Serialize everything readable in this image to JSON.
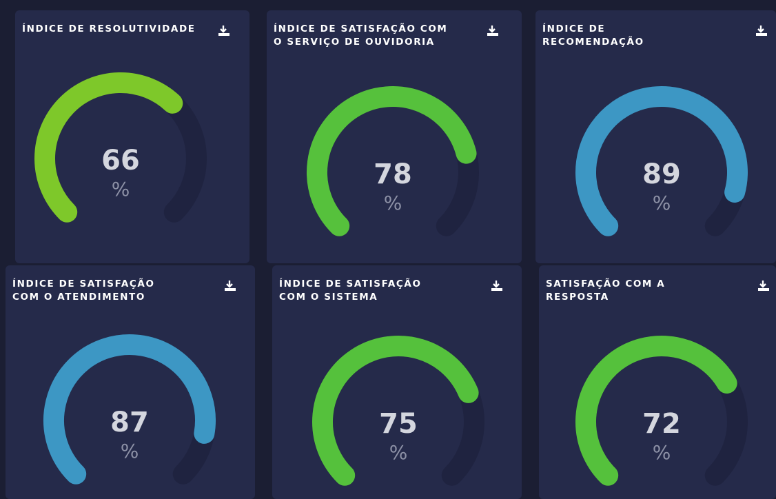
{
  "chart_data": [
    {
      "type": "gauge",
      "title": "ÍNDICE DE RESOLUTIVIDADE",
      "value": 66,
      "unit": "%",
      "ylim": [
        0,
        100
      ],
      "color": "#7ec82a"
    },
    {
      "type": "gauge",
      "title": "ÍNDICE DE SATISFAÇÃO COM O SERVIÇO DE OUVIDORIA",
      "value": 78,
      "unit": "%",
      "ylim": [
        0,
        100
      ],
      "color": "#56c13c"
    },
    {
      "type": "gauge",
      "title": "ÍNDICE DE RECOMENDAÇÃO",
      "value": 89,
      "unit": "%",
      "ylim": [
        0,
        100
      ],
      "color": "#3d97c4"
    },
    {
      "type": "gauge",
      "title": "ÍNDICE DE SATISFAÇÃO COM O ATENDIMENTO",
      "value": 87,
      "unit": "%",
      "ylim": [
        0,
        100
      ],
      "color": "#3d97c4"
    },
    {
      "type": "gauge",
      "title": "ÍNDICE DE SATISFAÇÃO COM O SISTEMA",
      "value": 75,
      "unit": "%",
      "ylim": [
        0,
        100
      ],
      "color": "#55c13c"
    },
    {
      "type": "gauge",
      "title": "SATISFAÇÃO COM A RESPOSTA",
      "value": 72,
      "unit": "%",
      "ylim": [
        0,
        100
      ],
      "color": "#55c13c"
    }
  ]
}
